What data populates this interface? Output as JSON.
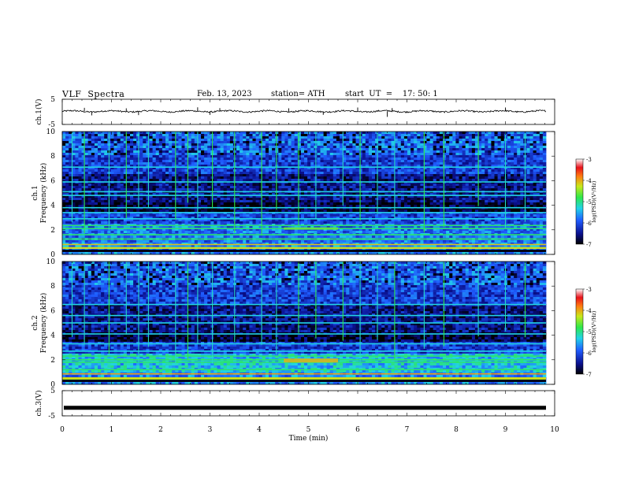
{
  "header": {
    "title": "VLF  Spectra",
    "date": "Feb. 13, 2023",
    "station": "station= ATH",
    "start_ut": "start  UT  =    17: 50: 1"
  },
  "chart_data": [
    {
      "type": "line",
      "name": "ch1-waveform",
      "ylabel": "ch.1(V)",
      "ylim": [
        -5,
        5
      ],
      "yticks": [
        "5",
        "-5"
      ],
      "xlim": [
        0,
        10
      ],
      "baseline": 0.2,
      "noise_amplitude": 0.6,
      "spikes": [
        [
          0.45,
          1.4
        ],
        [
          0.6,
          -1.6
        ],
        [
          1.3,
          1.2
        ],
        [
          1.55,
          -1.5
        ],
        [
          2.75,
          1.6
        ],
        [
          3.0,
          -1.4
        ],
        [
          3.2,
          1.3
        ],
        [
          4.6,
          1.2
        ],
        [
          5.3,
          -1.4
        ],
        [
          6.0,
          1.5
        ],
        [
          6.6,
          -2.2
        ],
        [
          6.7,
          1.3
        ],
        [
          9.0,
          1.5
        ]
      ]
    },
    {
      "type": "heatmap",
      "name": "ch1-spectrogram",
      "ylabel": "ch.1\nFrequency (kHz)",
      "ylim": [
        0,
        10
      ],
      "yticks": [
        "10",
        "8",
        "6",
        "4",
        "2",
        "0"
      ],
      "xlim": [
        0,
        10
      ],
      "colorbar": {
        "label": "log(PSD)(V²/Hz)",
        "range": [
          -7,
          -3
        ],
        "ticks": [
          "-3",
          "-4",
          "-5",
          "-6",
          "-7"
        ]
      },
      "bands_khz": [
        0.3,
        0.55,
        0.8,
        1.25,
        1.6,
        2.1,
        2.35,
        2.9,
        3.4,
        3.8,
        4.8,
        5.1,
        5.9,
        7.1
      ],
      "sferic_times_min": [
        0.2,
        0.45,
        0.95,
        1.3,
        1.55,
        1.75,
        2.3,
        2.55,
        2.75,
        3.05,
        3.5,
        4.05,
        4.35,
        4.8,
        5.15,
        5.7,
        6.05,
        6.4,
        6.75,
        7.35,
        7.75,
        8.45,
        9.0,
        9.4
      ]
    },
    {
      "type": "heatmap",
      "name": "ch2-spectrogram",
      "ylabel": "ch.2\nFrequency (kHz)",
      "ylim": [
        0,
        10
      ],
      "yticks": [
        "10",
        "8",
        "6",
        "4",
        "2",
        "0"
      ],
      "xlim": [
        0,
        10
      ],
      "colorbar": {
        "label": "log(PSD)(V²/Hz)",
        "range": [
          -7,
          -3
        ],
        "ticks": [
          "-3",
          "-4",
          "-5",
          "-6",
          "-7"
        ]
      },
      "bands_khz": [
        0.4,
        0.85,
        1.2,
        1.8,
        2.0,
        2.3,
        2.7,
        3.3,
        4.1,
        5.0,
        5.6,
        6.5
      ],
      "sferic_times_min": [
        0.2,
        0.45,
        0.95,
        1.3,
        1.55,
        1.75,
        2.3,
        2.55,
        2.75,
        3.05,
        3.5,
        4.05,
        4.35,
        4.8,
        5.15,
        5.7,
        6.05,
        6.4,
        6.75,
        7.35,
        7.75,
        8.45,
        9.0,
        9.4
      ]
    },
    {
      "type": "line",
      "name": "ch3-waveform",
      "ylabel": "ch.3(V)",
      "ylim": [
        -5,
        5
      ],
      "yticks": [
        "5",
        "-5"
      ],
      "xlim": [
        0,
        10
      ],
      "baseline": -1.8,
      "xlabel": "Time  (min)",
      "xticks": [
        "0",
        "1",
        "2",
        "3",
        "4",
        "5",
        "6",
        "7",
        "8",
        "9",
        "10"
      ]
    }
  ]
}
